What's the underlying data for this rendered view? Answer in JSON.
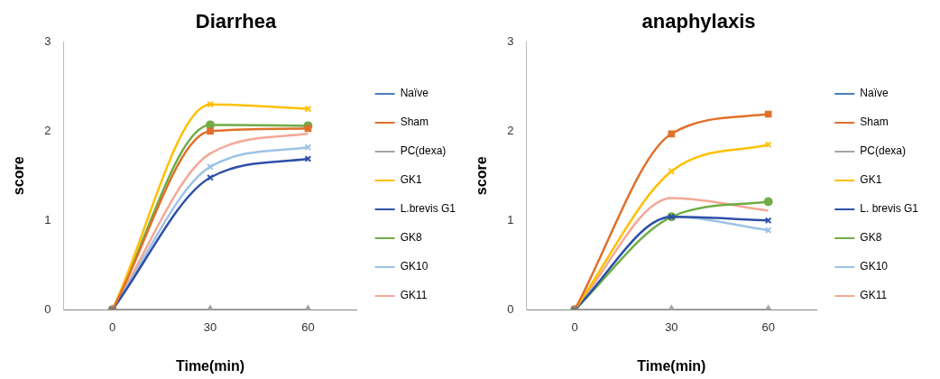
{
  "chart_data": [
    {
      "type": "line",
      "title": "Diarrhea",
      "xlabel": "Time(min)",
      "ylabel": "score",
      "categories": [
        "0",
        "30",
        "60"
      ],
      "ylim": [
        0,
        3
      ],
      "yticks": [
        0,
        1,
        2,
        3
      ],
      "grid": false,
      "legend": "right",
      "series": [
        {
          "name": "Naïve",
          "color": "#4a7ebb",
          "marker": "cross",
          "values": [
            0,
            null,
            null
          ]
        },
        {
          "name": "Sham",
          "color": "#e0702a",
          "marker": "square",
          "values": [
            0,
            2.0,
            2.03
          ]
        },
        {
          "name": "PC(dexa)",
          "color": "#a5a5a5",
          "marker": "triangle",
          "values": [
            0,
            0,
            0
          ]
        },
        {
          "name": "GK1",
          "color": "#ffc000",
          "marker": "cross",
          "values": [
            0,
            2.3,
            2.25
          ]
        },
        {
          "name": "L.brevis G1",
          "color": "#2e50a8",
          "marker": "cross",
          "values": [
            0,
            1.48,
            1.69
          ]
        },
        {
          "name": "GK8",
          "color": "#70ad47",
          "marker": "circle",
          "values": [
            0,
            2.07,
            2.06
          ]
        },
        {
          "name": "GK10",
          "color": "#9dc3e6",
          "marker": "cross",
          "values": [
            0,
            1.6,
            1.82
          ]
        },
        {
          "name": "GK11",
          "color": "#f4a896",
          "marker": "none",
          "values": [
            0,
            1.75,
            1.97
          ]
        }
      ]
    },
    {
      "type": "line",
      "title": "anaphylaxis",
      "xlabel": "Time(min)",
      "ylabel": "score",
      "categories": [
        "0",
        "30",
        "60"
      ],
      "ylim": [
        0,
        3
      ],
      "yticks": [
        0,
        1,
        2,
        3
      ],
      "grid": false,
      "legend": "right",
      "series": [
        {
          "name": "Naïve",
          "color": "#4a7ebb",
          "marker": "cross",
          "values": [
            0,
            null,
            null
          ]
        },
        {
          "name": "Sham",
          "color": "#e0702a",
          "marker": "square",
          "values": [
            0,
            1.97,
            2.19
          ]
        },
        {
          "name": "PC(dexa)",
          "color": "#a5a5a5",
          "marker": "triangle",
          "values": [
            0,
            0,
            0
          ]
        },
        {
          "name": "GK1",
          "color": "#ffc000",
          "marker": "cross",
          "values": [
            0,
            1.55,
            1.85
          ]
        },
        {
          "name": "L. brevis G1",
          "color": "#2e50a8",
          "marker": "cross",
          "values": [
            0,
            1.04,
            1.0
          ]
        },
        {
          "name": "GK8",
          "color": "#70ad47",
          "marker": "circle",
          "values": [
            0,
            1.04,
            1.21
          ]
        },
        {
          "name": "GK10",
          "color": "#9dc3e6",
          "marker": "cross",
          "values": [
            0,
            1.04,
            0.89
          ]
        },
        {
          "name": "GK11",
          "color": "#f4a896",
          "marker": "none",
          "values": [
            0,
            1.25,
            1.11
          ]
        }
      ]
    }
  ]
}
